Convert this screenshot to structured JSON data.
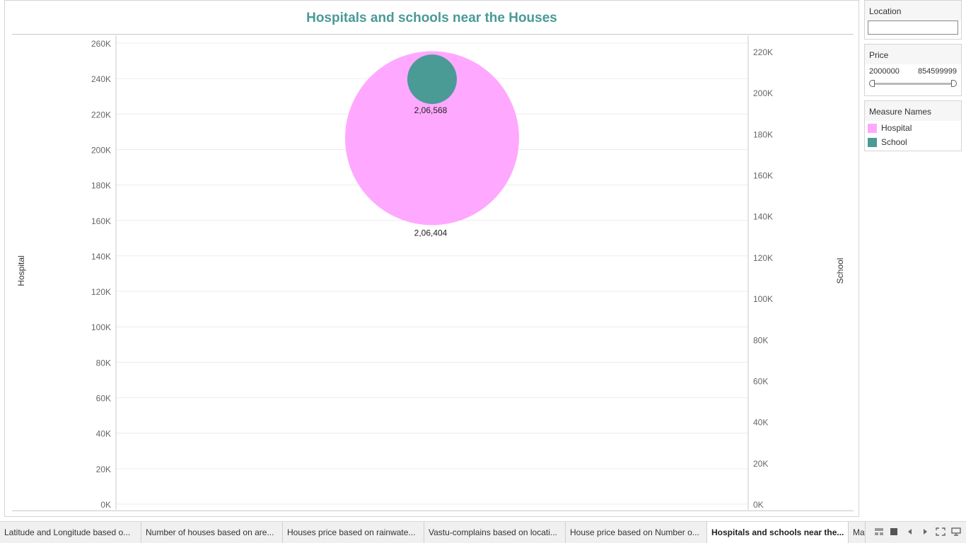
{
  "dashboard": {
    "title": "Hospitals and schools near the Houses",
    "y_left_title": "Hospital",
    "y_right_title": "School"
  },
  "filters": {
    "location": {
      "label": "Location",
      "value": ""
    },
    "price": {
      "label": "Price",
      "min": "2000000",
      "max": "854599999"
    }
  },
  "legend": {
    "title": "Measure Names",
    "items": [
      {
        "label": "Hospital",
        "color": "#ffa8ff"
      },
      {
        "label": "School",
        "color": "#4a9a96"
      }
    ]
  },
  "chart_data": {
    "type": "scatter",
    "title": "Hospitals and schools near the Houses",
    "left_axis": {
      "label": "Hospital",
      "ylim": [
        0,
        260000
      ],
      "ticks": [
        "0K",
        "20K",
        "40K",
        "60K",
        "80K",
        "100K",
        "120K",
        "140K",
        "160K",
        "180K",
        "200K",
        "220K",
        "240K",
        "260K"
      ]
    },
    "right_axis": {
      "label": "School",
      "ylim": [
        0,
        220000
      ],
      "ticks": [
        "0K",
        "20K",
        "40K",
        "60K",
        "80K",
        "100K",
        "120K",
        "140K",
        "160K",
        "180K",
        "200K",
        "220K"
      ]
    },
    "series": [
      {
        "name": "Hospital",
        "value": 206404,
        "label": "2,06,404",
        "axis": "left",
        "color": "#ffa8ff"
      },
      {
        "name": "School",
        "value": 206568,
        "label": "2,06,568",
        "axis": "right",
        "color": "#4a9a96"
      }
    ],
    "grid": true
  },
  "tabs": [
    {
      "label": "Latitude and Longitude based o...",
      "active": false
    },
    {
      "label": "Number of houses based on are...",
      "active": false
    },
    {
      "label": "Houses price based on rainwate...",
      "active": false
    },
    {
      "label": "Vastu-complains based on locati...",
      "active": false
    },
    {
      "label": "House price based on Number o...",
      "active": false
    },
    {
      "label": "Hospitals and schools near the...",
      "active": true
    },
    {
      "label": "Ma",
      "active": false
    }
  ],
  "nav_icons": [
    "grid-view-icon",
    "single-view-icon",
    "prev-icon",
    "next-icon",
    "fullscreen-icon",
    "presentation-icon"
  ]
}
